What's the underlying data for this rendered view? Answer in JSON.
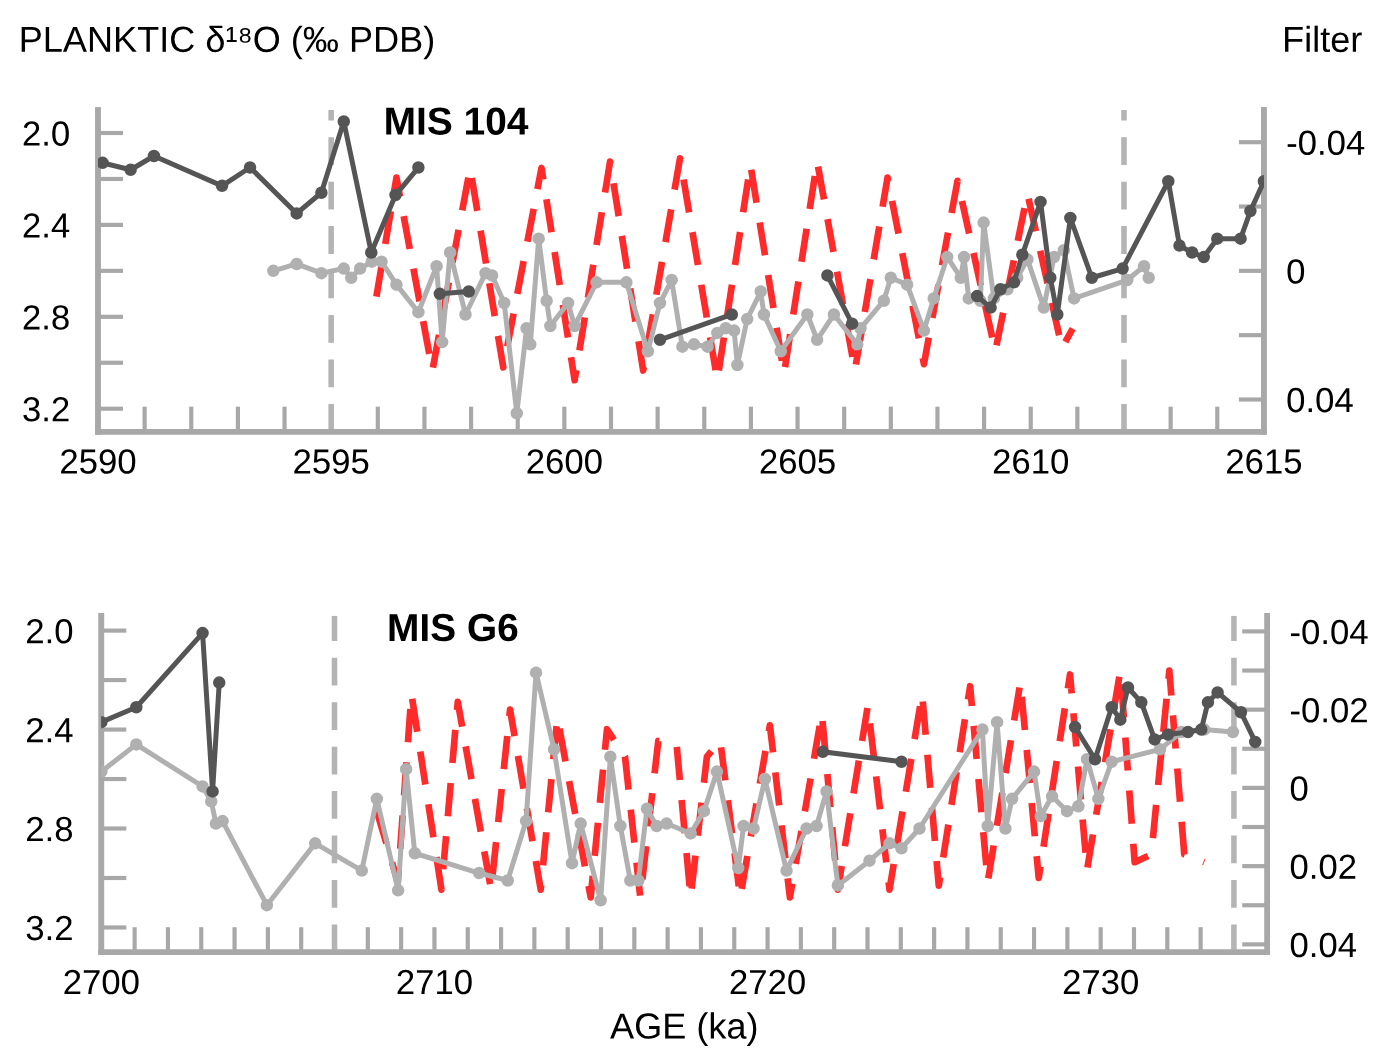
{
  "chart_data": [
    {
      "type": "line",
      "ylabel": "PLANKTIC δ¹⁸O (‰ PDB)",
      "y2label": "Filter",
      "annotations": [
        "MIS 104"
      ],
      "xlim": [
        2590,
        2615
      ],
      "xticks": [
        2590,
        {
          "value": 2591,
          "label": null
        },
        {
          "value": 2592,
          "label": null
        },
        {
          "value": 2593,
          "label": null
        },
        {
          "value": 2594,
          "label": null
        },
        2595,
        {
          "value": 2596,
          "label": null
        },
        {
          "value": 2597,
          "label": null
        },
        {
          "value": 2598,
          "label": null
        },
        {
          "value": 2599,
          "label": null
        },
        2600,
        {
          "value": 2601,
          "label": null
        },
        {
          "value": 2602,
          "label": null
        },
        {
          "value": 2603,
          "label": null
        },
        {
          "value": 2604,
          "label": null
        },
        2605,
        {
          "value": 2606,
          "label": null
        },
        {
          "value": 2607,
          "label": null
        },
        {
          "value": 2608,
          "label": null
        },
        {
          "value": 2609,
          "label": null
        },
        2610,
        {
          "value": 2611,
          "label": null
        },
        {
          "value": 2612,
          "label": null
        },
        {
          "value": 2613,
          "label": null
        },
        {
          "value": 2614,
          "label": null
        },
        2615
      ],
      "ylim": [
        3.3,
        1.9
      ],
      "yticks": [
        {
          "value": 2.0,
          "label": "2.0"
        },
        {
          "value": 2.2,
          "label": null
        },
        2.4,
        {
          "value": 2.6,
          "label": null
        },
        2.8,
        {
          "value": 3.0,
          "label": null
        },
        3.2
      ],
      "y2lim": [
        0.05,
        -0.05
      ],
      "y2ticks": [
        -0.04,
        {
          "value": -0.02,
          "label": null
        },
        0,
        {
          "value": 0.02,
          "label": null
        },
        0.04
      ],
      "grid": false,
      "legend": false,
      "ref_lines": [
        {
          "axis": "x",
          "value": 2595,
          "color": "#b4b4b4",
          "line_style": "dashed"
        },
        {
          "axis": "x",
          "value": 2612,
          "color": "#b4b4b4",
          "line_style": "dashed"
        }
      ],
      "series": [
        {
          "color": "#b0b0b0",
          "marker": "circle",
          "line_style": "solid",
          "x": [
            2593.76,
            2594.26,
            2594.79,
            2595.27,
            2595.43,
            2595.62,
            2595.87,
            2596.08,
            2596.4,
            2596.87,
            2597.26,
            2597.38,
            2597.55,
            2597.88,
            2598.31,
            2598.45,
            2598.71,
            2598.98,
            2599.19,
            2599.27,
            2599.45,
            2599.62,
            2599.7,
            2600.08,
            2600.22,
            2600.69,
            2601.33,
            2601.79,
            2602.05,
            2602.3,
            2602.53,
            2602.78,
            2603.07,
            2603.28,
            2603.46,
            2603.64,
            2603.71,
            2603.92,
            2604.21,
            2604.28,
            2604.64,
            2605.21,
            2605.42,
            2605.78,
            2606.28,
            2606.35,
            2606.85,
            2607.0,
            2607.35,
            2607.71,
            2607.92,
            2608.21,
            2608.5,
            2608.57,
            2608.67,
            2608.92,
            2608.99,
            2609.21,
            2609.5,
            2609.71,
            2609.93,
            2610.28,
            2610.5,
            2610.71,
            2610.93,
            2612.07,
            2612.43,
            2612.53
          ],
          "values": [
            2.6,
            2.57,
            2.61,
            2.59,
            2.63,
            2.59,
            2.56,
            2.56,
            2.66,
            2.78,
            2.58,
            2.91,
            2.52,
            2.79,
            2.61,
            2.62,
            2.74,
            3.22,
            2.85,
            2.92,
            2.46,
            2.73,
            2.84,
            2.74,
            2.84,
            2.65,
            2.65,
            2.95,
            2.74,
            2.64,
            2.93,
            2.92,
            2.93,
            2.87,
            2.85,
            2.86,
            3.01,
            2.81,
            2.69,
            2.79,
            2.95,
            2.79,
            2.9,
            2.79,
            2.92,
            2.85,
            2.73,
            2.63,
            2.66,
            2.86,
            2.72,
            2.54,
            2.63,
            2.54,
            2.72,
            2.73,
            2.39,
            2.72,
            2.68,
            2.63,
            2.55,
            2.76,
            2.54,
            2.51,
            2.72,
            2.64,
            2.58,
            2.63
          ]
        },
        {
          "color": "#555555",
          "marker": "circle",
          "line_style": "solid",
          "x": [
            2590.1,
            2590.7,
            2591.2,
            2592.66,
            2593.26,
            2594.26,
            2594.79,
            2595.27,
            2595.86,
            2596.38,
            2596.87
          ],
          "values": [
            2.13,
            2.16,
            2.1,
            2.23,
            2.15,
            2.35,
            2.26,
            1.95,
            2.52,
            2.27,
            2.15
          ]
        },
        {
          "color": "#555555",
          "marker": "circle",
          "line_style": "solid",
          "x": [
            2597.33,
            2597.95
          ],
          "values": [
            2.7,
            2.69
          ]
        },
        {
          "color": "#555555",
          "marker": "circle",
          "line_style": "solid",
          "x": [
            2602.05,
            2603.59
          ],
          "values": [
            2.9,
            2.79
          ]
        },
        {
          "color": "#555555",
          "marker": "circle",
          "line_style": "solid",
          "x": [
            2605.64,
            2606.17
          ],
          "values": [
            2.62,
            2.83
          ]
        },
        {
          "color": "#555555",
          "marker": "circle",
          "line_style": "solid",
          "x": [
            2608.85,
            2609.14,
            2609.35,
            2609.64,
            2609.82,
            2610.21,
            2610.42,
            2610.57,
            2610.85,
            2611.31,
            2611.97,
            2612.95,
            2613.19,
            2613.46,
            2613.71,
            2614.0,
            2614.5,
            2614.71,
            2615.0
          ],
          "values": [
            2.71,
            2.76,
            2.68,
            2.65,
            2.53,
            2.3,
            2.63,
            2.79,
            2.37,
            2.63,
            2.59,
            2.21,
            2.49,
            2.52,
            2.54,
            2.46,
            2.46,
            2.34,
            2.21
          ]
        },
        {
          "color": "#ff2a2a",
          "marker": "none",
          "line_style": "dashed",
          "axis": "y2",
          "x": [
            2595.97,
            2596.4,
            2597.17,
            2597.98,
            2598.69,
            2599.51,
            2600.22,
            2600.98,
            2601.69,
            2602.48,
            2603.28,
            2603.99,
            2604.71,
            2605.42,
            2606.23,
            2606.93,
            2607.71,
            2608.43,
            2609.24,
            2609.93,
            2610.67,
            2610.9
          ],
          "values": [
            0.008,
            -0.029,
            0.031,
            -0.032,
            0.03,
            -0.032,
            0.034,
            -0.034,
            0.031,
            -0.035,
            0.034,
            -0.033,
            0.032,
            -0.034,
            0.031,
            -0.029,
            0.029,
            -0.028,
            0.025,
            -0.024,
            0.024,
            0.018
          ]
        }
      ]
    },
    {
      "type": "line",
      "xlabel": "AGE (ka)",
      "annotations": [
        "MIS G6"
      ],
      "xlim": [
        2700,
        2735
      ],
      "xticks": [
        2700,
        {
          "value": 2701,
          "label": null
        },
        {
          "value": 2702,
          "label": null
        },
        {
          "value": 2703,
          "label": null
        },
        {
          "value": 2704,
          "label": null
        },
        {
          "value": 2705,
          "label": null
        },
        {
          "value": 2706,
          "label": null
        },
        {
          "value": 2707,
          "label": null
        },
        {
          "value": 2708,
          "label": null
        },
        {
          "value": 2709,
          "label": null
        },
        2710,
        {
          "value": 2711,
          "label": null
        },
        {
          "value": 2712,
          "label": null
        },
        {
          "value": 2713,
          "label": null
        },
        {
          "value": 2714,
          "label": null
        },
        {
          "value": 2715,
          "label": null
        },
        {
          "value": 2716,
          "label": null
        },
        {
          "value": 2717,
          "label": null
        },
        {
          "value": 2718,
          "label": null
        },
        {
          "value": 2719,
          "label": null
        },
        2720,
        {
          "value": 2721,
          "label": null
        },
        {
          "value": 2722,
          "label": null
        },
        {
          "value": 2723,
          "label": null
        },
        {
          "value": 2724,
          "label": null
        },
        {
          "value": 2725,
          "label": null
        },
        {
          "value": 2726,
          "label": null
        },
        {
          "value": 2727,
          "label": null
        },
        {
          "value": 2728,
          "label": null
        },
        {
          "value": 2729,
          "label": null
        },
        2730,
        {
          "value": 2731,
          "label": null
        },
        {
          "value": 2732,
          "label": null
        },
        {
          "value": 2733,
          "label": null
        },
        {
          "value": 2734,
          "label": null
        },
        {
          "value": 2735,
          "label": null
        }
      ],
      "ylim": [
        3.3,
        1.94
      ],
      "yticks": [
        {
          "value": 2.0,
          "label": "2.0"
        },
        {
          "value": 2.2,
          "label": null
        },
        2.4,
        {
          "value": 2.6,
          "label": null
        },
        2.8,
        {
          "value": 3.0,
          "label": null
        },
        3.2
      ],
      "y2lim": [
        0.042,
        -0.044
      ],
      "y2ticks": [
        -0.04,
        {
          "value": -0.03,
          "label": null
        },
        -0.02,
        {
          "value": -0.01,
          "label": null
        },
        0,
        {
          "value": 0.01,
          "label": null
        },
        0.02,
        {
          "value": 0.03,
          "label": null
        },
        0.04
      ],
      "grid": false,
      "legend": false,
      "ref_lines": [
        {
          "axis": "x",
          "value": 2707,
          "color": "#b4b4b4",
          "line_style": "dashed"
        },
        {
          "axis": "x",
          "value": 2734,
          "color": "#b4b4b4",
          "line_style": "dashed"
        }
      ],
      "series": [
        {
          "color": "#b0b0b0",
          "marker": "circle",
          "line_style": "solid",
          "x": [
            2700.0,
            2701.05,
            2703.04,
            2703.3,
            2703.44,
            2703.64,
            2704.97,
            2706.42,
            2707.82,
            2708.27,
            2708.91,
            2709.15,
            2709.41,
            2711.34,
            2712.2,
            2712.75,
            2713.05,
            2713.59,
            2714.13,
            2714.39,
            2714.99,
            2715.28,
            2715.58,
            2715.88,
            2716.12,
            2716.38,
            2716.67,
            2716.97,
            2717.69,
            2718.09,
            2718.48,
            2719.12,
            2719.28,
            2719.58,
            2719.92,
            2720.57,
            2721.17,
            2721.47,
            2721.77,
            2722.11,
            2723.06,
            2723.66,
            2724.02,
            2724.56,
            2726.45,
            2726.61,
            2726.89,
            2727.14,
            2727.34,
            2728.0,
            2728.2,
            2728.54,
            2728.99,
            2729.33,
            2729.59,
            2729.93,
            2730.33,
            2731.78,
            2732.42,
            2733.11,
            2733.97
          ],
          "values": [
            2.57,
            2.46,
            2.63,
            2.69,
            2.78,
            2.77,
            3.11,
            2.86,
            2.97,
            2.68,
            3.05,
            2.56,
            2.9,
            2.98,
            3.01,
            2.77,
            2.17,
            2.48,
            2.94,
            2.78,
            3.09,
            2.51,
            2.79,
            3.01,
            3.01,
            2.72,
            2.79,
            2.78,
            2.82,
            2.73,
            2.57,
            2.96,
            2.79,
            2.8,
            2.6,
            2.97,
            2.8,
            2.79,
            2.65,
            3.03,
            2.93,
            2.86,
            2.88,
            2.8,
            2.4,
            2.79,
            2.37,
            2.8,
            2.68,
            2.57,
            2.75,
            2.67,
            2.73,
            2.71,
            2.52,
            2.68,
            2.53,
            2.48,
            2.41,
            2.4,
            2.41
          ]
        },
        {
          "color": "#555555",
          "marker": "circle",
          "line_style": "solid",
          "x": [
            2700.0,
            2701.05,
            2703.04,
            2703.34,
            2703.54
          ],
          "values": [
            2.37,
            2.31,
            2.01,
            2.65,
            2.21
          ]
        },
        {
          "color": "#555555",
          "marker": "circle",
          "line_style": "solid",
          "x": [
            2721.66,
            2724.02
          ],
          "values": [
            2.49,
            2.53
          ]
        },
        {
          "color": "#555555",
          "marker": "circle",
          "line_style": "solid",
          "x": [
            2729.23,
            2729.83,
            2730.33,
            2730.59,
            2730.82,
            2731.22,
            2731.62,
            2732.02,
            2732.62,
            2733.02,
            2733.22,
            2733.51,
            2734.21,
            2734.64
          ],
          "values": [
            2.39,
            2.52,
            2.31,
            2.36,
            2.23,
            2.29,
            2.44,
            2.42,
            2.41,
            2.4,
            2.29,
            2.25,
            2.33,
            2.45
          ]
        },
        {
          "color": "#ff2a2a",
          "marker": "none",
          "line_style": "dashed",
          "axis": "y2",
          "x": [
            2708.27,
            2708.9,
            2709.31,
            2710.21,
            2710.7,
            2711.7,
            2712.27,
            2713.19,
            2713.69,
            2714.69,
            2715.18,
            2715.72,
            2716.18,
            2716.72,
            2717.27,
            2717.69,
            2718.18,
            2718.58,
            2719.18,
            2720.07,
            2720.67,
            2721.63,
            2722.11,
            2723.01,
            2723.66,
            2724.64,
            2725.14,
            2726.08,
            2726.61,
            2727.59,
            2728.14,
            2729.08,
            2729.59,
            2730.59,
            2731.02,
            2731.52,
            2732.06,
            2732.51,
            2733.11
          ],
          "values": [
            0.006,
            0.024,
            -0.024,
            0.026,
            -0.022,
            0.026,
            -0.02,
            0.026,
            -0.018,
            0.028,
            -0.015,
            -0.008,
            0.028,
            -0.012,
            -0.011,
            0.028,
            -0.008,
            -0.012,
            0.028,
            -0.016,
            0.028,
            -0.019,
            0.026,
            -0.021,
            0.026,
            -0.024,
            0.025,
            -0.026,
            0.024,
            -0.027,
            0.023,
            -0.029,
            0.021,
            -0.03,
            0.019,
            0.017,
            -0.03,
            0.017,
            0.019
          ]
        }
      ]
    }
  ]
}
